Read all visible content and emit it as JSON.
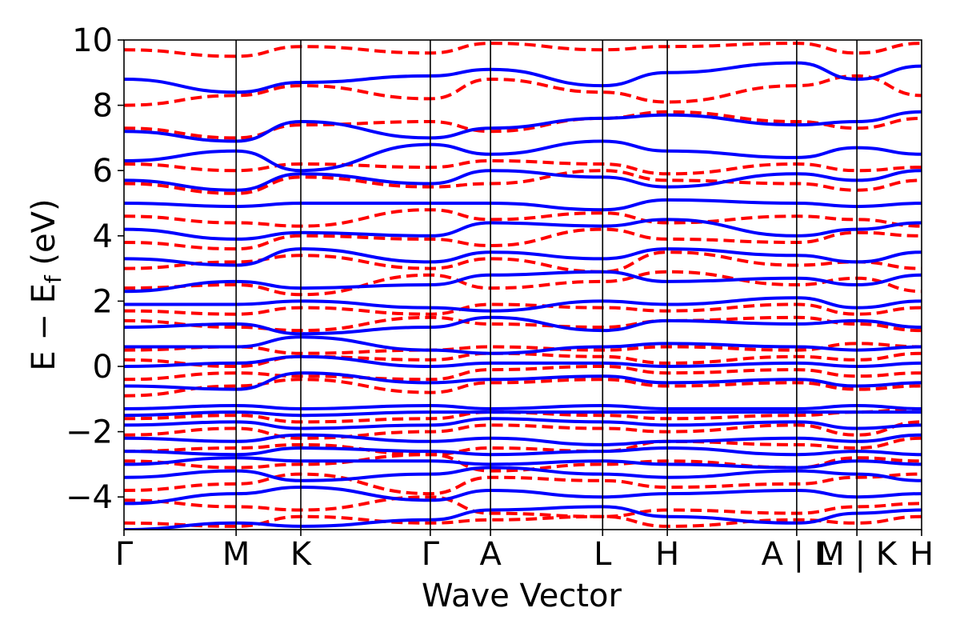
{
  "chart_data": {
    "type": "line",
    "title": "",
    "xlabel": "Wave Vector",
    "ylabel": "E − E",
    "ylabel_sub": "f",
    "ylabel_unit": " (eV)",
    "ylim": [
      -5,
      10
    ],
    "yticks": [
      -4,
      -2,
      0,
      2,
      4,
      6,
      8,
      10
    ],
    "ytick_labels": [
      "−4",
      "−2",
      "0",
      "2",
      "4",
      "6",
      "8",
      "10"
    ],
    "grid": false,
    "legend": "none",
    "kpath": [
      {
        "label": "Γ",
        "x": 0.0
      },
      {
        "label": "M",
        "x": 1.0
      },
      {
        "label": "K",
        "x": 1.577
      },
      {
        "label": "Γ",
        "x": 2.732
      },
      {
        "label": "A",
        "x": 3.269
      },
      {
        "label": "L",
        "x": 4.269
      },
      {
        "label": "H",
        "x": 4.846
      },
      {
        "label": "A | L",
        "x": 6.0
      },
      {
        "label": "M | K",
        "x": 6.537
      },
      {
        "label": "H",
        "x": 7.114
      }
    ],
    "series": [
      {
        "style": "dashed",
        "color": "#ff0000",
        "bands": [
          [
            -4.8,
            -4.9,
            -4.6,
            -4.8,
            -4.7,
            -4.6,
            -4.9,
            -4.7,
            -4.8,
            -4.6
          ],
          [
            -4.1,
            -4.3,
            -4.4,
            -4.0,
            -4.5,
            -4.6,
            -4.4,
            -4.5,
            -4.3,
            -4.2
          ],
          [
            -3.8,
            -3.6,
            -3.3,
            -3.9,
            -3.4,
            -3.5,
            -3.7,
            -3.6,
            -3.4,
            -3.3
          ],
          [
            -2.9,
            -3.1,
            -3.0,
            -2.7,
            -3.2,
            -3.0,
            -2.9,
            -3.1,
            -2.8,
            -2.9
          ],
          [
            -2.6,
            -2.5,
            -2.4,
            -2.7,
            -2.5,
            -2.6,
            -2.3,
            -2.4,
            -2.5,
            -2.2
          ],
          [
            -2.1,
            -1.9,
            -2.2,
            -2.0,
            -1.8,
            -1.9,
            -2.0,
            -1.8,
            -2.1,
            -1.7
          ],
          [
            -1.6,
            -1.5,
            -1.7,
            -1.6,
            -1.4,
            -1.5,
            -1.6,
            -1.5,
            -1.4,
            -1.3
          ],
          [
            -0.9,
            -0.6,
            -0.4,
            -0.8,
            -0.5,
            -0.4,
            -0.6,
            -0.5,
            -0.7,
            -0.6
          ],
          [
            -0.4,
            -0.2,
            -0.3,
            -0.4,
            -0.1,
            0.0,
            -0.2,
            -0.1,
            -0.3,
            -0.2
          ],
          [
            0.2,
            0.0,
            0.3,
            0.2,
            0.4,
            0.3,
            0.1,
            0.3,
            0.2,
            0.4
          ],
          [
            0.5,
            0.6,
            0.4,
            0.5,
            0.6,
            0.5,
            0.6,
            0.5,
            0.7,
            0.6
          ],
          [
            1.4,
            1.2,
            1.1,
            1.5,
            1.3,
            1.2,
            1.4,
            1.5,
            1.3,
            1.1
          ],
          [
            1.7,
            1.6,
            1.8,
            1.6,
            1.9,
            1.8,
            1.7,
            1.9,
            1.6,
            1.8
          ],
          [
            2.4,
            2.5,
            2.2,
            2.8,
            2.4,
            2.6,
            2.9,
            2.5,
            2.7,
            2.3
          ],
          [
            3.0,
            3.2,
            3.4,
            3.0,
            3.3,
            2.9,
            3.5,
            3.1,
            3.2,
            3.0
          ],
          [
            3.8,
            3.6,
            4.0,
            3.9,
            3.7,
            4.2,
            3.9,
            3.8,
            4.1,
            4.0
          ],
          [
            4.6,
            4.4,
            4.3,
            4.8,
            4.5,
            4.7,
            4.4,
            4.6,
            4.5,
            4.3
          ],
          [
            5.6,
            5.3,
            5.8,
            5.5,
            5.6,
            6.0,
            5.7,
            5.6,
            5.4,
            5.7
          ],
          [
            6.2,
            6.0,
            6.2,
            6.1,
            6.3,
            6.2,
            5.9,
            6.2,
            6.0,
            6.1
          ],
          [
            7.3,
            7.0,
            7.4,
            7.5,
            7.2,
            7.6,
            7.8,
            7.5,
            7.3,
            7.6
          ],
          [
            8.0,
            8.3,
            8.6,
            8.2,
            8.8,
            8.4,
            8.1,
            8.6,
            8.9,
            8.3
          ],
          [
            9.7,
            9.5,
            9.8,
            9.6,
            9.9,
            9.7,
            9.8,
            9.9,
            9.6,
            9.9
          ]
        ]
      },
      {
        "style": "solid",
        "color": "#0000ff",
        "bands": [
          [
            -5.0,
            -4.8,
            -4.9,
            -4.7,
            -4.4,
            -4.3,
            -4.6,
            -4.8,
            -4.5,
            -4.4
          ],
          [
            -4.2,
            -3.9,
            -3.7,
            -4.1,
            -3.8,
            -4.0,
            -3.9,
            -3.8,
            -4.0,
            -3.9
          ],
          [
            -3.4,
            -3.2,
            -3.5,
            -3.3,
            -3.1,
            -3.3,
            -3.4,
            -3.2,
            -3.3,
            -3.5
          ],
          [
            -3.0,
            -2.8,
            -2.9,
            -2.9,
            -3.0,
            -2.9,
            -3.0,
            -3.1,
            -2.9,
            -3.0
          ],
          [
            -2.6,
            -2.7,
            -2.5,
            -2.6,
            -2.7,
            -2.6,
            -2.5,
            -2.7,
            -2.6,
            -2.7
          ],
          [
            -2.2,
            -2.3,
            -2.1,
            -2.3,
            -2.2,
            -2.4,
            -2.3,
            -2.2,
            -2.3,
            -2.1
          ],
          [
            -1.8,
            -1.7,
            -1.9,
            -1.8,
            -1.6,
            -1.7,
            -1.8,
            -1.7,
            -1.9,
            -1.8
          ],
          [
            -1.5,
            -1.4,
            -1.5,
            -1.4,
            -1.4,
            -1.4,
            -1.4,
            -1.4,
            -1.4,
            -1.4
          ],
          [
            -1.3,
            -1.2,
            -1.3,
            -1.2,
            -1.3,
            -1.2,
            -1.3,
            -1.3,
            -1.2,
            -1.3
          ],
          [
            -0.6,
            -0.7,
            -0.2,
            -0.5,
            -0.4,
            -0.3,
            -0.5,
            -0.4,
            -0.6,
            -0.5
          ],
          [
            0.0,
            0.1,
            0.3,
            0.0,
            0.1,
            0.1,
            0.0,
            0.1,
            0.0,
            0.1
          ],
          [
            0.6,
            0.6,
            0.9,
            0.5,
            0.4,
            0.6,
            0.7,
            0.6,
            0.5,
            0.6
          ],
          [
            1.2,
            1.3,
            1.0,
            1.2,
            1.5,
            1.1,
            1.4,
            1.3,
            1.4,
            1.2
          ],
          [
            1.9,
            1.9,
            2.0,
            1.8,
            1.7,
            2.0,
            1.9,
            2.1,
            1.8,
            2.0
          ],
          [
            2.3,
            2.6,
            2.4,
            2.5,
            2.8,
            2.9,
            2.6,
            2.7,
            2.5,
            2.8
          ],
          [
            3.3,
            3.1,
            3.6,
            3.2,
            3.5,
            3.3,
            3.6,
            3.4,
            3.2,
            3.5
          ],
          [
            4.2,
            3.9,
            4.1,
            4.0,
            4.4,
            4.3,
            4.5,
            4.0,
            4.2,
            4.4
          ],
          [
            5.0,
            4.9,
            5.0,
            5.0,
            5.0,
            4.8,
            5.1,
            5.0,
            4.9,
            5.0
          ],
          [
            5.7,
            5.4,
            5.9,
            5.6,
            6.0,
            5.8,
            5.5,
            5.9,
            5.7,
            6.0
          ],
          [
            6.3,
            6.6,
            6.0,
            6.8,
            6.5,
            6.9,
            6.6,
            6.4,
            6.7,
            6.5
          ],
          [
            7.2,
            6.9,
            7.5,
            7.0,
            7.3,
            7.6,
            7.7,
            7.4,
            7.5,
            7.8
          ],
          [
            8.8,
            8.4,
            8.7,
            8.9,
            9.1,
            8.6,
            9.0,
            9.3,
            8.8,
            9.2
          ]
        ]
      }
    ]
  }
}
